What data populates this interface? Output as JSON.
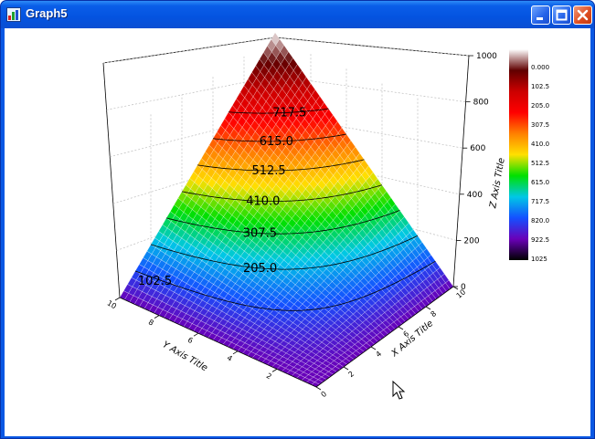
{
  "window": {
    "title": "Graph5",
    "controls": [
      "minimize",
      "maximize",
      "close"
    ]
  },
  "chart_data": {
    "type": "surface-3d",
    "surface": "z = x*y style ramp: max at far corner, min at near corner",
    "xlabel": "X Axis Title",
    "ylabel": "Y Axis Title",
    "zlabel": "Z Axis Title",
    "x_ticks": [
      "0",
      "2",
      "4",
      "6",
      "8",
      "10"
    ],
    "y_ticks": [
      "10",
      "8",
      "6",
      "4",
      "2"
    ],
    "z_ticks": [
      "0",
      "200",
      "400",
      "600",
      "800",
      "1000"
    ],
    "zlim": [
      0,
      1025
    ],
    "contour_levels": [
      "102.5",
      "205.0",
      "307.5",
      "410.0",
      "512.5",
      "615.0",
      "717.5"
    ],
    "colorbar_labels": [
      "0.000",
      "102.5",
      "205.0",
      "307.5",
      "410.0",
      "512.5",
      "615.0",
      "717.5",
      "820.0",
      "922.5",
      "1025"
    ],
    "colormap": [
      "#000000",
      "#6a00b8",
      "#1450ff",
      "#00c8e6",
      "#00e000",
      "#ffe000",
      "#ff8000",
      "#ff0000",
      "#cc0000",
      "#600000",
      "#ffffff"
    ],
    "grid": true
  }
}
